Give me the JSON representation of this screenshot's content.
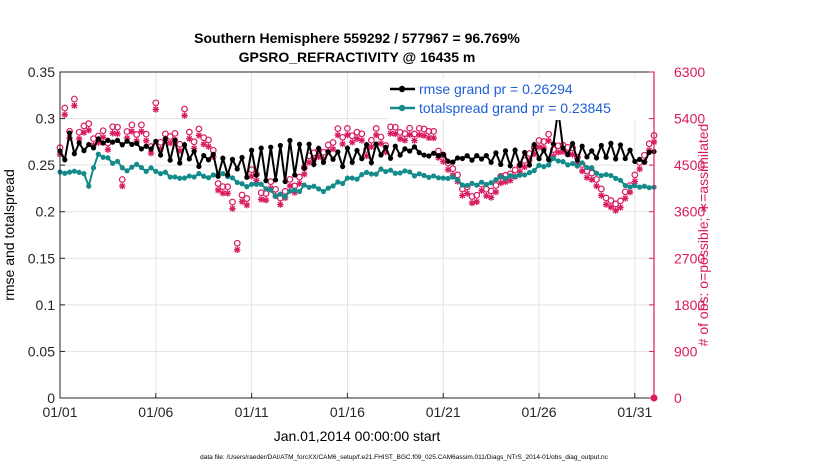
{
  "chart_data": {
    "type": "line",
    "title_line1": "Southern Hemisphere 559292 / 577967 = 96.769%",
    "title_line2": "GPSRO_REFRACTIVITY @ 16435 m",
    "xlabel": "Jan.01,2014 00:00:00 start",
    "ylabel_left": "rmse and totalspread",
    "ylabel_right": "# of obs: o=possible; ∗=assimilated",
    "footer": "data file: /Users/raeder/DAI/ATM_forcXX/CAM6_setup/f.e21.FHIST_BGC.f09_025.CAM6assim.011/Diags_NTrS_2014-01/obs_diag_output.nc",
    "xlim": [
      0,
      31
    ],
    "ylim_left": [
      0,
      0.35
    ],
    "ylim_right": [
      0,
      6300
    ],
    "x_ticks": [
      0,
      5,
      10,
      15,
      20,
      25,
      30
    ],
    "x_tick_labels": [
      "01/01",
      "01/06",
      "01/11",
      "01/16",
      "01/21",
      "01/26",
      "01/31"
    ],
    "y_ticks_left": [
      0,
      0.05,
      0.1,
      0.15,
      0.2,
      0.25,
      0.3,
      0.35
    ],
    "y_tick_labels_left": [
      "0",
      "0.05",
      "0.1",
      "0.15",
      "0.2",
      "0.25",
      "0.3",
      "0.35"
    ],
    "y_ticks_right": [
      0,
      900,
      1800,
      2700,
      3600,
      4500,
      5400,
      6300
    ],
    "y_tick_labels_right": [
      "0",
      "900",
      "1800",
      "2700",
      "3600",
      "4500",
      "5400",
      "6300"
    ],
    "grid": true,
    "legend": {
      "position": "top-right",
      "entries": [
        "rmse grand pr = 0.26294",
        "totalspread grand pr = 0.23845"
      ]
    },
    "colors": {
      "rmse": "#000000",
      "spread": "#138b8b",
      "obs": "#d81b60",
      "legend_text": "#1e5fd6"
    },
    "series": [
      {
        "name": "rmse",
        "axis": "left",
        "x": [
          0.0,
          0.25,
          0.5,
          0.75,
          1.0,
          1.25,
          1.5,
          1.75,
          2.0,
          2.25,
          2.5,
          2.75,
          3.0,
          3.25,
          3.5,
          3.75,
          4.0,
          4.25,
          4.5,
          4.75,
          5.0,
          5.25,
          5.5,
          5.75,
          6.0,
          6.25,
          6.5,
          6.75,
          7.0,
          7.25,
          7.5,
          7.75,
          8.0,
          8.25,
          8.5,
          8.75,
          9.0,
          9.25,
          9.5,
          9.75,
          10.0,
          10.25,
          10.5,
          10.75,
          11.0,
          11.25,
          11.5,
          11.75,
          12.0,
          12.25,
          12.5,
          12.75,
          13.0,
          13.25,
          13.5,
          13.75,
          14.0,
          14.25,
          14.5,
          14.75,
          15.0,
          15.25,
          15.5,
          15.75,
          16.0,
          16.25,
          16.5,
          16.75,
          17.0,
          17.25,
          17.5,
          17.75,
          18.0,
          18.25,
          18.5,
          18.75,
          19.0,
          19.25,
          19.5,
          19.75,
          20.0,
          20.25,
          20.5,
          20.75,
          21.0,
          21.25,
          21.5,
          21.75,
          22.0,
          22.25,
          22.5,
          22.75,
          23.0,
          23.25,
          23.5,
          23.75,
          24.0,
          24.25,
          24.5,
          24.75,
          25.0,
          25.25,
          25.5,
          25.75,
          26.0,
          26.25,
          26.5,
          26.75,
          27.0,
          27.25,
          27.5,
          27.75,
          28.0,
          28.25,
          28.5,
          28.75,
          29.0,
          29.25,
          29.5,
          29.75,
          30.0,
          30.25,
          30.5,
          30.75,
          31.0
        ],
        "values": [
          0.2652,
          0.2558,
          0.2845,
          0.2623,
          0.2738,
          0.2656,
          0.2721,
          0.2685,
          0.2782,
          0.2737,
          0.2766,
          0.2747,
          0.2766,
          0.2719,
          0.2757,
          0.2723,
          0.2734,
          0.2674,
          0.2703,
          0.2673,
          0.2755,
          0.2608,
          0.2783,
          0.2553,
          0.2767,
          0.2522,
          0.2719,
          0.2567,
          0.2649,
          0.2486,
          0.2603,
          0.2558,
          0.2616,
          0.2381,
          0.2574,
          0.2397,
          0.2562,
          0.2459,
          0.2582,
          0.237,
          0.266,
          0.2393,
          0.2683,
          0.2334,
          0.2693,
          0.2341,
          0.2711,
          0.2324,
          0.2765,
          0.2394,
          0.2724,
          0.2467,
          0.2725,
          0.2508,
          0.2681,
          0.2529,
          0.2643,
          0.2563,
          0.2641,
          0.2485,
          0.2683,
          0.2531,
          0.2658,
          0.2569,
          0.2719,
          0.2527,
          0.2726,
          0.2609,
          0.2691,
          0.2574,
          0.2703,
          0.2608,
          0.2675,
          0.2651,
          0.2696,
          0.2634,
          0.2608,
          0.2598,
          0.2628,
          0.2601,
          0.2616,
          0.2542,
          0.2532,
          0.2577,
          0.2571,
          0.2601,
          0.2554,
          0.2602,
          0.2566,
          0.2602,
          0.2531,
          0.2632,
          0.2508,
          0.2653,
          0.2493,
          0.2661,
          0.2501,
          0.2636,
          0.2501,
          0.2721,
          0.257,
          0.2658,
          0.2559,
          0.2726,
          0.3092,
          0.2685,
          0.2613,
          0.2732,
          0.2555,
          0.2703,
          0.2588,
          0.2653,
          0.2577,
          0.2711,
          0.2584,
          0.2734,
          0.2567,
          0.2717,
          0.2571,
          0.2661,
          0.254,
          0.2562,
          0.2532,
          0.2637,
          0.2646
        ]
      },
      {
        "name": "totalspread",
        "axis": "left",
        "x": [
          0.0,
          0.25,
          0.5,
          0.75,
          1.0,
          1.25,
          1.5,
          1.75,
          2.0,
          2.25,
          2.5,
          2.75,
          3.0,
          3.25,
          3.5,
          3.75,
          4.0,
          4.25,
          4.5,
          4.75,
          5.0,
          5.25,
          5.5,
          5.75,
          6.0,
          6.25,
          6.5,
          6.75,
          7.0,
          7.25,
          7.5,
          7.75,
          8.0,
          8.25,
          8.5,
          8.75,
          9.0,
          9.25,
          9.5,
          9.75,
          10.0,
          10.25,
          10.5,
          10.75,
          11.0,
          11.25,
          11.5,
          11.75,
          12.0,
          12.25,
          12.5,
          12.75,
          13.0,
          13.25,
          13.5,
          13.75,
          14.0,
          14.25,
          14.5,
          14.75,
          15.0,
          15.25,
          15.5,
          15.75,
          16.0,
          16.25,
          16.5,
          16.75,
          17.0,
          17.25,
          17.5,
          17.75,
          18.0,
          18.25,
          18.5,
          18.75,
          19.0,
          19.25,
          19.5,
          19.75,
          20.0,
          20.25,
          20.5,
          20.75,
          21.0,
          21.25,
          21.5,
          21.75,
          22.0,
          22.25,
          22.5,
          22.75,
          23.0,
          23.25,
          23.5,
          23.75,
          24.0,
          24.25,
          24.5,
          24.75,
          25.0,
          25.25,
          25.5,
          25.75,
          26.0,
          26.25,
          26.5,
          26.75,
          27.0,
          27.25,
          27.5,
          27.75,
          28.0,
          28.25,
          28.5,
          28.75,
          29.0,
          29.25,
          29.5,
          29.75,
          30.0,
          30.25,
          30.5,
          30.75,
          31.0
        ],
        "values": [
          0.2426,
          0.2413,
          0.2425,
          0.2435,
          0.2422,
          0.2409,
          0.2275,
          0.2471,
          0.2617,
          0.2585,
          0.2579,
          0.2519,
          0.2541,
          0.2472,
          0.2439,
          0.2478,
          0.2509,
          0.2474,
          0.2433,
          0.2471,
          0.2433,
          0.2409,
          0.2424,
          0.2372,
          0.2373,
          0.2359,
          0.2362,
          0.2383,
          0.2373,
          0.2409,
          0.2381,
          0.2365,
          0.2394,
          0.2402,
          0.2409,
          0.2376,
          0.2364,
          0.2314,
          0.23,
          0.2269,
          0.2294,
          0.2294,
          0.2295,
          0.2246,
          0.2233,
          0.2164,
          0.2189,
          0.2159,
          0.222,
          0.2233,
          0.2217,
          0.2286,
          0.2262,
          0.2273,
          0.2245,
          0.2217,
          0.2253,
          0.2276,
          0.2319,
          0.2303,
          0.2361,
          0.2361,
          0.2349,
          0.2398,
          0.2422,
          0.2405,
          0.2403,
          0.2458,
          0.2431,
          0.2446,
          0.2413,
          0.2416,
          0.2438,
          0.2427,
          0.2385,
          0.2407,
          0.2389,
          0.2369,
          0.2384,
          0.2364,
          0.2361,
          0.2357,
          0.2372,
          0.2342,
          0.2287,
          0.2282,
          0.2304,
          0.2285,
          0.2317,
          0.2292,
          0.2311,
          0.2343,
          0.2377,
          0.2357,
          0.2387,
          0.2376,
          0.2393,
          0.2395,
          0.242,
          0.2442,
          0.2498,
          0.2484,
          0.2503,
          0.2572,
          0.2545,
          0.2538,
          0.2503,
          0.2517,
          0.249,
          0.2525,
          0.2474,
          0.2472,
          0.2413,
          0.2388,
          0.2399,
          0.2388,
          0.2358,
          0.2337,
          0.2281,
          0.2266,
          0.2278,
          0.2264,
          0.2273,
          0.2258,
          0.2263
        ]
      },
      {
        "name": "obs possible",
        "axis": "right",
        "x": [
          0.0,
          0.25,
          0.5,
          0.75,
          1.0,
          1.25,
          1.5,
          1.75,
          2.0,
          2.25,
          2.5,
          2.75,
          3.0,
          3.25,
          3.5,
          3.75,
          4.0,
          4.25,
          4.5,
          4.75,
          5.0,
          5.25,
          5.5,
          5.75,
          6.0,
          6.25,
          6.5,
          6.75,
          7.0,
          7.25,
          7.5,
          7.75,
          8.0,
          8.25,
          8.5,
          8.75,
          9.0,
          9.25,
          9.5,
          9.75,
          10.0,
          10.25,
          10.5,
          10.75,
          11.0,
          11.25,
          11.5,
          11.75,
          12.0,
          12.25,
          12.5,
          12.75,
          13.0,
          13.25,
          13.5,
          13.75,
          14.0,
          14.25,
          14.5,
          14.75,
          15.0,
          15.25,
          15.5,
          15.75,
          16.0,
          16.25,
          16.5,
          16.75,
          17.0,
          17.25,
          17.5,
          17.75,
          18.0,
          18.25,
          18.5,
          18.75,
          19.0,
          19.25,
          19.5,
          19.75,
          20.0,
          20.25,
          20.5,
          20.75,
          21.0,
          21.25,
          21.5,
          21.75,
          22.0,
          22.25,
          22.5,
          22.75,
          23.0,
          23.25,
          23.5,
          23.75,
          24.0,
          24.25,
          24.5,
          24.75,
          25.0,
          25.25,
          25.5,
          25.75,
          26.0,
          26.25,
          26.5,
          26.75,
          27.0,
          27.25,
          27.5,
          27.75,
          28.0,
          28.25,
          28.5,
          28.75,
          29.0,
          29.25,
          29.5,
          29.75,
          30.0,
          30.25,
          30.5,
          30.75,
          31.0
        ],
        "values": [
          4838,
          5604,
          5155,
          5778,
          5136,
          5258,
          5302,
          5012,
          5063,
          5165,
          4927,
          5242,
          5233,
          4223,
          5150,
          5278,
          5091,
          5278,
          5099,
          4859,
          5704,
          4940,
          5103,
          5053,
          5114,
          4903,
          5585,
          5137,
          4951,
          5201,
          5031,
          4986,
          4788,
          4144,
          4085,
          4082,
          3787,
          2991,
          3922,
          3854,
          4412,
          4329,
          3965,
          3950,
          4180,
          4032,
          3864,
          3995,
          4225,
          4098,
          4270,
          4453,
          4679,
          4738,
          4785,
          4747,
          4890,
          4938,
          5206,
          5037,
          5210,
          5068,
          5136,
          5105,
          4804,
          4981,
          5209,
          5044,
          4879,
          5238,
          5231,
          5135,
          5108,
          5215,
          5103,
          5211,
          5197,
          5154,
          5152,
          4772,
          4696,
          4541,
          4432,
          4311,
          4039,
          4079,
          3894,
          3918,
          4133,
          4034,
          4001,
          4107,
          4283,
          4304,
          4331,
          4406,
          4497,
          4591,
          4725,
          4839,
          4976,
          4956,
          5097,
          4801,
          4875,
          4886,
          4843,
          4833,
          4652,
          4512,
          4387,
          4346,
          4223,
          4040,
          3866,
          3816,
          3750,
          3809,
          3984,
          4106,
          4311,
          4553,
          4691,
          4912,
          5075
        ]
      },
      {
        "name": "obs assimilated",
        "axis": "right",
        "x": [
          0.0,
          0.25,
          0.5,
          0.75,
          1.0,
          1.25,
          1.5,
          1.75,
          2.0,
          2.25,
          2.5,
          2.75,
          3.0,
          3.25,
          3.5,
          3.75,
          4.0,
          4.25,
          4.5,
          4.75,
          5.0,
          5.25,
          5.5,
          5.75,
          6.0,
          6.25,
          6.5,
          6.75,
          7.0,
          7.25,
          7.5,
          7.75,
          8.0,
          8.25,
          8.5,
          8.75,
          9.0,
          9.25,
          9.5,
          9.75,
          10.0,
          10.25,
          10.5,
          10.75,
          11.0,
          11.25,
          11.5,
          11.75,
          12.0,
          12.25,
          12.5,
          12.75,
          13.0,
          13.25,
          13.5,
          13.75,
          14.0,
          14.25,
          14.5,
          14.75,
          15.0,
          15.25,
          15.5,
          15.75,
          16.0,
          16.25,
          16.5,
          16.75,
          17.0,
          17.25,
          17.5,
          17.75,
          18.0,
          18.25,
          18.5,
          18.75,
          19.0,
          19.25,
          19.5,
          19.75,
          20.0,
          20.25,
          20.5,
          20.75,
          21.0,
          21.25,
          21.5,
          21.75,
          22.0,
          22.25,
          22.5,
          22.75,
          23.0,
          23.25,
          23.5,
          23.75,
          24.0,
          24.25,
          24.5,
          24.75,
          25.0,
          25.25,
          25.5,
          25.75,
          26.0,
          26.25,
          26.5,
          26.75,
          27.0,
          27.25,
          27.5,
          27.75,
          28.0,
          28.25,
          28.5,
          28.75,
          29.0,
          29.25,
          29.5,
          29.75,
          30.0,
          30.25,
          30.5,
          30.75,
          31.0
        ],
        "values": [
          4711,
          5475,
          5028,
          5650,
          5009,
          5131,
          5175,
          4885,
          4936,
          5038,
          4800,
          5115,
          5106,
          4096,
          5023,
          5151,
          4964,
          5151,
          4972,
          4732,
          5577,
          4813,
          4976,
          4926,
          4987,
          4776,
          5458,
          5010,
          4824,
          5074,
          4904,
          4859,
          4661,
          4017,
          3958,
          3955,
          3660,
          2864,
          3795,
          3727,
          4285,
          4202,
          3838,
          3823,
          4053,
          3905,
          3737,
          3868,
          4098,
          3971,
          4143,
          4326,
          4552,
          4611,
          4658,
          4620,
          4763,
          4811,
          5079,
          4910,
          5083,
          4941,
          5009,
          4978,
          4677,
          4854,
          5082,
          4917,
          4752,
          5111,
          5104,
          5008,
          4981,
          5088,
          4976,
          5084,
          5070,
          5027,
          5025,
          4645,
          4569,
          4414,
          4305,
          4184,
          3912,
          3952,
          3767,
          3791,
          4006,
          3907,
          3874,
          3980,
          4156,
          4177,
          4204,
          4279,
          4370,
          4464,
          4598,
          4712,
          4849,
          4829,
          4970,
          4674,
          4748,
          4759,
          4716,
          4706,
          4525,
          4385,
          4260,
          4219,
          4096,
          3913,
          3739,
          3689,
          3623,
          3682,
          3857,
          3979,
          4184,
          4426,
          4564,
          4785,
          4948
        ]
      }
    ]
  }
}
